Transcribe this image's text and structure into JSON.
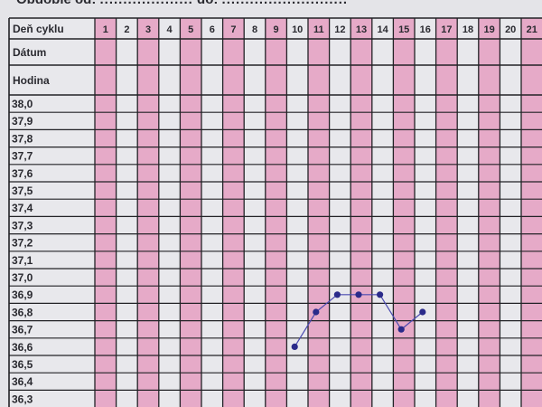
{
  "header": {
    "period_from_label": "Obdobie od:",
    "period_from_value": "....................",
    "period_to_label": "do:",
    "period_to_value": "..........................."
  },
  "chart_data": {
    "type": "line",
    "row_labels": [
      "Deň cyklu",
      "Dátum",
      "Hodina"
    ],
    "x": [
      1,
      2,
      3,
      4,
      5,
      6,
      7,
      8,
      9,
      10,
      11,
      12,
      13,
      14,
      15,
      16,
      17,
      18,
      19,
      20,
      21
    ],
    "y_ticks": [
      "38,0",
      "37,9",
      "37,8",
      "37,7",
      "37,6",
      "37,5",
      "37,4",
      "37,3",
      "37,2",
      "37,1",
      "37,0",
      "36,9",
      "36,8",
      "36,7",
      "36,6",
      "36,5",
      "36,4",
      "36,3"
    ],
    "series": [
      {
        "points": [
          [
            10,
            36.6
          ],
          [
            11,
            36.8
          ],
          [
            12,
            36.9
          ],
          [
            13,
            36.9
          ],
          [
            14,
            36.9
          ],
          [
            15,
            36.7
          ],
          [
            16,
            36.8
          ]
        ]
      }
    ],
    "ylim": [
      36.3,
      38.0
    ],
    "grid": true,
    "colors": {
      "pink_column": "#e6aac8",
      "light_column": "#e8e8ec",
      "line": "#4a4ab0",
      "marker": "#2a2a8a",
      "grid": "#222226"
    }
  }
}
